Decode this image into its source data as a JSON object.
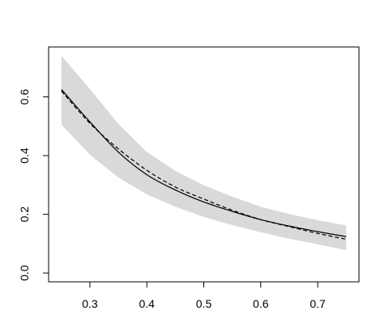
{
  "chart_data": {
    "type": "line",
    "title": "",
    "xlabel": "",
    "ylabel": "",
    "xlim": [
      0.2275,
      0.7725
    ],
    "ylim": [
      -0.03,
      0.77
    ],
    "x_ticks": [
      0.3,
      0.4,
      0.5,
      0.6,
      0.7
    ],
    "x_tick_labels": [
      "0.3",
      "0.4",
      "0.5",
      "0.6",
      "0.7"
    ],
    "y_ticks": [
      0.0,
      0.2,
      0.4,
      0.6
    ],
    "y_tick_labels": [
      "0.0",
      "0.2",
      "0.4",
      "0.6"
    ],
    "grid": false,
    "legend": "none",
    "x": [
      0.25,
      0.3,
      0.35,
      0.4,
      0.45,
      0.5,
      0.55,
      0.6,
      0.65,
      0.7,
      0.75
    ],
    "series": [
      {
        "style": "solid",
        "color": "#000000",
        "values": [
          0.625,
          0.515,
          0.412,
          0.335,
          0.283,
          0.242,
          0.21,
          0.182,
          0.16,
          0.141,
          0.124
        ]
      },
      {
        "style": "dashed",
        "color": "#000000",
        "values": [
          0.62,
          0.51,
          0.423,
          0.35,
          0.293,
          0.252,
          0.214,
          0.182,
          0.158,
          0.135,
          0.115
        ]
      }
    ],
    "band": {
      "color": "#d9d9d9",
      "lower": [
        0.505,
        0.403,
        0.325,
        0.268,
        0.226,
        0.191,
        0.163,
        0.139,
        0.117,
        0.098,
        0.078
      ],
      "upper": [
        0.74,
        0.627,
        0.508,
        0.412,
        0.348,
        0.299,
        0.26,
        0.226,
        0.201,
        0.18,
        0.162
      ]
    }
  }
}
